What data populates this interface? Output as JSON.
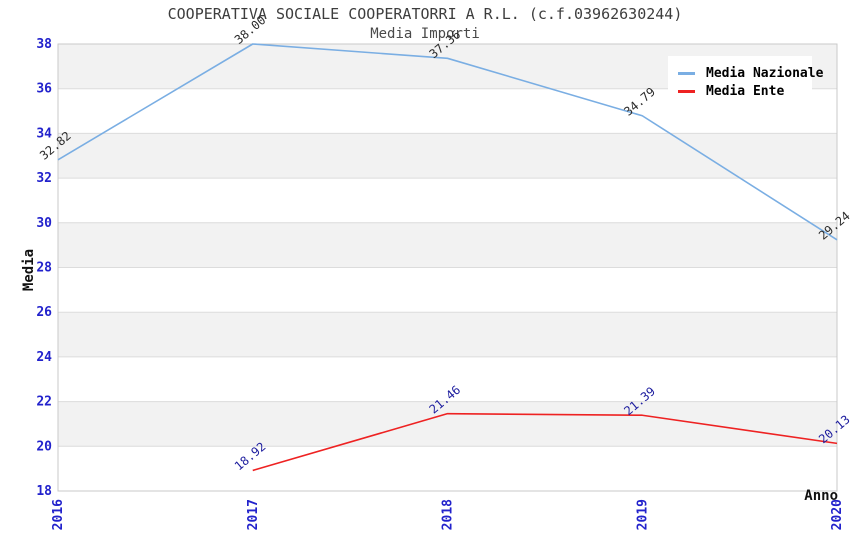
{
  "title": "COOPERATIVA SOCIALE COOPERATORRI A R.L. (c.f.03962630244)",
  "subtitle": "Media Importi",
  "axes": {
    "y_label": "Media",
    "x_label": "Anno",
    "y_ticks": [
      18,
      20,
      22,
      24,
      26,
      28,
      30,
      32,
      34,
      36,
      38
    ],
    "x_ticks": [
      "2016",
      "2017",
      "2018",
      "2019",
      "2020"
    ]
  },
  "legend": {
    "items": [
      {
        "label": "Media Nazionale",
        "color": "#7aaee3"
      },
      {
        "label": "Media Ente",
        "color": "#ee2222"
      }
    ]
  },
  "colors": {
    "tick_label": "#2222cc",
    "grid_line": "#dcdcdc",
    "band_fill": "#f2f2f2",
    "plot_border": "#c9c9c9",
    "title_text": "#3d3d3d"
  },
  "chart_data": {
    "type": "line",
    "title": "COOPERATIVA SOCIALE COOPERATORRI A R.L. (c.f.03962630244)",
    "subtitle": "Media Importi",
    "xlabel": "Anno",
    "ylabel": "Media",
    "x": [
      "2016",
      "2017",
      "2018",
      "2019",
      "2020"
    ],
    "series": [
      {
        "name": "Media Nazionale",
        "color": "#7aaee3",
        "label_color": "#2b2b2b",
        "values": [
          32.82,
          38.0,
          37.36,
          34.79,
          29.24
        ]
      },
      {
        "name": "Media Ente",
        "color": "#ee2222",
        "label_color": "#1c1c9e",
        "values": [
          null,
          18.92,
          21.46,
          21.39,
          20.13
        ]
      }
    ],
    "ylim": [
      18,
      38
    ],
    "ytick_step": 2,
    "grid": "horizontal",
    "bands": "alternating-2-unit",
    "legend_position": "top-right",
    "point_label_rotation_deg": -40,
    "x_tick_rotation_deg": -90
  }
}
